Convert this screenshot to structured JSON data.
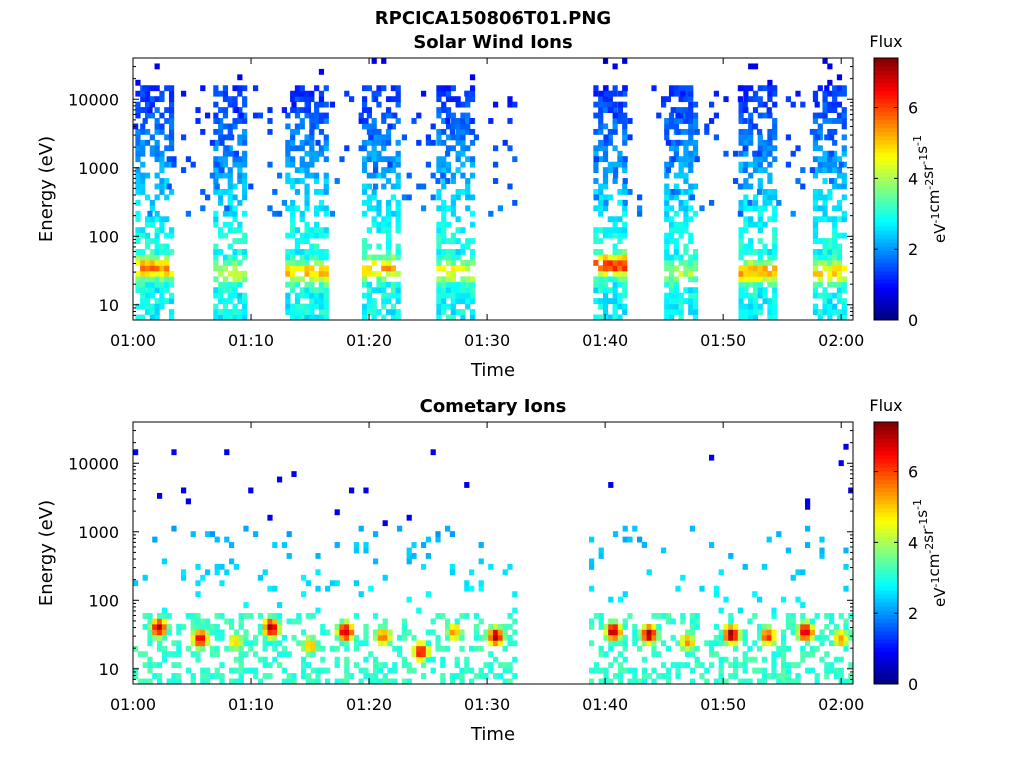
{
  "figure_title": "RPCICA150806T01.PNG",
  "chart_data": [
    {
      "type": "heatmap",
      "title": "Solar Wind Ions",
      "xlabel": "Time",
      "ylabel": "Energy (eV)",
      "x_ticks": [
        "01:00",
        "01:10",
        "01:20",
        "01:30",
        "01:40",
        "01:50",
        "02:00"
      ],
      "xlim_minutes": [
        0,
        61
      ],
      "y_scale": "log",
      "y_ticks": [
        10,
        100,
        1000,
        10000
      ],
      "ylim": [
        6,
        40000
      ],
      "colorbar": {
        "title": "Flux",
        "label": "eV-1cm-2sr-1s-1",
        "ticks": [
          0,
          2,
          4,
          6
        ],
        "range": [
          0,
          7.4
        ],
        "colormap": "jet"
      },
      "data_gap_minutes": [
        32.5,
        38.5
      ],
      "sweep_bursts": [
        {
          "start_min": 0.2,
          "end_min": 3.4,
          "peak_energy_ev": 35,
          "peak_flux": 5.5
        },
        {
          "start_min": 6.8,
          "end_min": 9.6,
          "peak_energy_ev": 30,
          "peak_flux": 4.3
        },
        {
          "start_min": 12.9,
          "end_min": 16.2,
          "peak_energy_ev": 30,
          "peak_flux": 5.0
        },
        {
          "start_min": 19.4,
          "end_min": 22.4,
          "peak_energy_ev": 35,
          "peak_flux": 5.2
        },
        {
          "start_min": 25.7,
          "end_min": 28.8,
          "peak_energy_ev": 30,
          "peak_flux": 4.6
        },
        {
          "start_min": 39.0,
          "end_min": 41.6,
          "peak_energy_ev": 38,
          "peak_flux": 6.2
        },
        {
          "start_min": 45.0,
          "end_min": 47.8,
          "peak_energy_ev": 30,
          "peak_flux": 4.0
        },
        {
          "start_min": 51.3,
          "end_min": 54.2,
          "peak_energy_ev": 30,
          "peak_flux": 5.3
        },
        {
          "start_min": 57.6,
          "end_min": 60.4,
          "peak_energy_ev": 30,
          "peak_flux": 4.8
        }
      ]
    },
    {
      "type": "heatmap",
      "title": "Cometary Ions",
      "xlabel": "Time",
      "ylabel": "Energy (eV)",
      "x_ticks": [
        "01:00",
        "01:10",
        "01:20",
        "01:30",
        "01:40",
        "01:50",
        "02:00"
      ],
      "xlim_minutes": [
        0,
        61
      ],
      "y_scale": "log",
      "y_ticks": [
        10,
        100,
        1000,
        10000
      ],
      "ylim": [
        6,
        40000
      ],
      "colorbar": {
        "title": "Flux",
        "label": "eV-1cm-2sr-1s-1",
        "ticks": [
          0,
          2,
          4,
          6
        ],
        "range": [
          0,
          7.4
        ],
        "colormap": "jet"
      },
      "data_gap_minutes": [
        32.5,
        38.5
      ],
      "band_energy_range_ev": [
        6,
        60
      ],
      "hot_spots": [
        {
          "time_min": 2.0,
          "energy_ev": 40,
          "flux": 7.0
        },
        {
          "time_min": 5.5,
          "energy_ev": 28,
          "flux": 6.8
        },
        {
          "time_min": 8.5,
          "energy_ev": 25,
          "flux": 5.0
        },
        {
          "time_min": 11.5,
          "energy_ev": 40,
          "flux": 7.2
        },
        {
          "time_min": 14.8,
          "energy_ev": 22,
          "flux": 5.4
        },
        {
          "time_min": 17.8,
          "energy_ev": 35,
          "flux": 7.0
        },
        {
          "time_min": 21.0,
          "energy_ev": 30,
          "flux": 5.8
        },
        {
          "time_min": 24.2,
          "energy_ev": 18,
          "flux": 6.5
        },
        {
          "time_min": 27.0,
          "energy_ev": 35,
          "flux": 5.5
        },
        {
          "time_min": 30.5,
          "energy_ev": 30,
          "flux": 7.0
        },
        {
          "time_min": 40.5,
          "energy_ev": 35,
          "flux": 7.0
        },
        {
          "time_min": 43.5,
          "energy_ev": 32,
          "flux": 7.1
        },
        {
          "time_min": 46.8,
          "energy_ev": 25,
          "flux": 5.4
        },
        {
          "time_min": 50.5,
          "energy_ev": 32,
          "flux": 7.2
        },
        {
          "time_min": 53.6,
          "energy_ev": 30,
          "flux": 6.2
        },
        {
          "time_min": 56.8,
          "energy_ev": 35,
          "flux": 7.0
        },
        {
          "time_min": 59.8,
          "energy_ev": 28,
          "flux": 5.6
        }
      ]
    }
  ]
}
